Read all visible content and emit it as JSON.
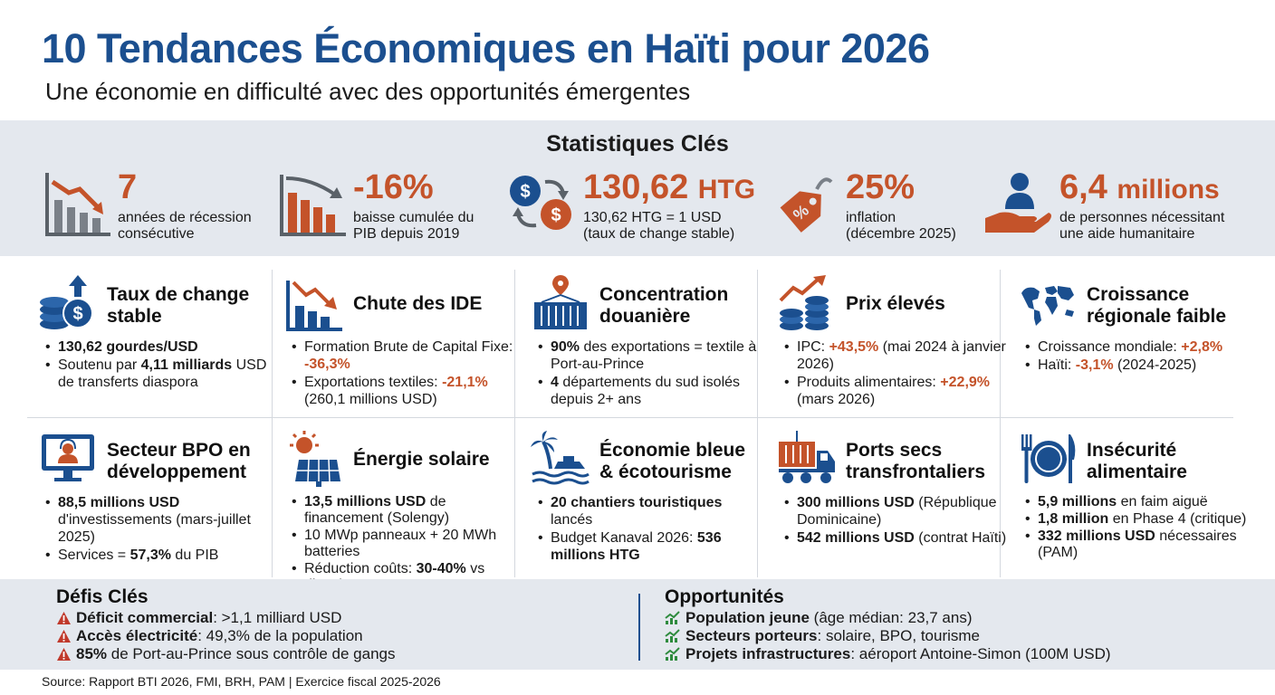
{
  "header": {
    "title": "10 Tendances Économiques en Haïti pour 2026",
    "subtitle": "Une économie en difficulté avec des opportunités émergentes"
  },
  "stats": {
    "title": "Statistiques Clés",
    "items": [
      {
        "value": "7",
        "label": "années de récession\nconsécutive",
        "icon": "declining-bar-chart-icon"
      },
      {
        "value": "-16%",
        "label": "baisse cumulée du\nPIB depuis 2019",
        "icon": "declining-bars-icon"
      },
      {
        "value": "130,62",
        "unit": "HTG",
        "label": "130,62 HTG = 1 USD\n(taux de change stable)",
        "icon": "currency-exchange-icon"
      },
      {
        "value": "25%",
        "label": "inflation\n(décembre 2025)",
        "icon": "price-tag-icon"
      },
      {
        "value": "6,4",
        "unit": "millions",
        "label": "de personnes nécessitant\nune aide humanitaire",
        "icon": "humanitarian-hand-icon"
      }
    ]
  },
  "cards": [
    {
      "title": "Taux de change\nstable",
      "icon": "coins-dollar-icon",
      "bullets": [
        [
          "",
          "130,62 gourdes/USD",
          "b"
        ],
        [
          "Soutenu par ",
          "4,11 milliards",
          "b",
          " USD de transferts diaspora"
        ]
      ]
    },
    {
      "title": "Chute des IDE",
      "icon": "falling-chart-icon",
      "bullets": [
        [
          "Formation Brute de Capital Fixe: ",
          "-36,3%",
          "o"
        ],
        [
          "Exportations textiles: ",
          "-21,1%",
          "o",
          " (260,1 millions USD)"
        ]
      ]
    },
    {
      "title": "Concentration\ndouanière",
      "icon": "shipping-container-icon",
      "bullets": [
        [
          "",
          "90%",
          "b",
          " des exportations = textile à Port-au-Prince"
        ],
        [
          "",
          "4",
          "b",
          " départements du sud isolés depuis 2+ ans"
        ]
      ]
    },
    {
      "title": "Prix élevés",
      "icon": "rising-coins-icon",
      "bullets": [
        [
          "IPC: ",
          "+43,5%",
          "o",
          " (mai 2024 à janvier 2026)"
        ],
        [
          "Produits alimentaires: ",
          "+22,9%",
          "o",
          " (mars 2026)"
        ]
      ]
    },
    {
      "title": "Croissance\nrégionale faible",
      "icon": "world-map-icon",
      "bullets": [
        [
          "Croissance mondiale: ",
          "+2,8%",
          "o"
        ],
        [
          "Haïti: ",
          "-3,1%",
          "o",
          " (2024-2025)"
        ]
      ]
    },
    {
      "title": "Secteur BPO en\ndéveloppement",
      "icon": "call-center-monitor-icon",
      "bullets": [
        [
          "",
          "88,5 millions USD",
          "b",
          " d'investissements (mars-juillet 2025)"
        ],
        [
          "Services = ",
          "57,3%",
          "b",
          " du PIB"
        ]
      ]
    },
    {
      "title": "Énergie solaire",
      "icon": "solar-panel-icon",
      "bullets": [
        [
          "",
          "13,5 millions USD",
          "b",
          " de financement (Solengy)"
        ],
        [
          "10 MWp panneaux + 20 MWh batteries"
        ],
        [
          "Réduction coûts: ",
          "30-40%",
          "b",
          " vs diesel"
        ]
      ]
    },
    {
      "title": "Économie bleue\n& écotourisme",
      "icon": "palm-boat-icon",
      "bullets": [
        [
          "",
          "20 chantiers touristiques",
          "b",
          " lancés"
        ],
        [
          "Budget Kanaval 2026: ",
          "536 millions HTG",
          "b"
        ]
      ]
    },
    {
      "title": "Ports secs\ntransfrontaliers",
      "icon": "container-truck-icon",
      "bullets": [
        [
          "",
          "300 millions USD",
          "b",
          " (République Dominicaine)"
        ],
        [
          "",
          "542 millions USD",
          "b",
          " (contrat Haïti)"
        ]
      ]
    },
    {
      "title": "Insécurité\nalimentaire",
      "icon": "plate-cutlery-icon",
      "bullets": [
        [
          "",
          "5,9 millions",
          "b",
          " en faim aiguë"
        ],
        [
          "",
          "1,8 million",
          "b",
          " en Phase 4 (critique)"
        ],
        [
          "",
          "332 millions USD",
          "b",
          " nécessaires (PAM)"
        ]
      ]
    }
  ],
  "challenges": {
    "title": "Défis Clés",
    "icon": "warning-icon",
    "items": [
      [
        "Déficit commercial",
        ": >1,1 milliard USD"
      ],
      [
        "Accès électricité",
        ": 49,3% de la population"
      ],
      [
        "85%",
        " de Port-au-Prince sous contrôle de gangs"
      ]
    ]
  },
  "opportunities": {
    "title": "Opportunités",
    "icon": "growth-chart-icon",
    "items": [
      [
        "Population jeune",
        " (âge médian: 23,7 ans)"
      ],
      [
        "Secteurs porteurs",
        ": solaire, BPO, tourisme"
      ],
      [
        "Projets infrastructures",
        ": aéroport Antoine-Simon (100M USD)"
      ]
    ]
  },
  "source": "Source: Rapport BTI 2026, FMI, BRH, PAM | Exercice fiscal 2025-2026",
  "colors": {
    "navy": "#1b4f8f",
    "accent": "#c4532a",
    "panel": "#e4e8ee",
    "warning": "#c0392b",
    "green": "#2e8b3e"
  }
}
